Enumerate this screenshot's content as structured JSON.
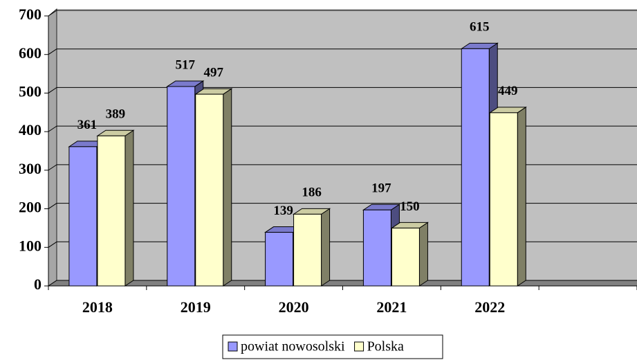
{
  "chart_data": {
    "type": "bar3d",
    "categories": [
      "2018",
      "2019",
      "2020",
      "2021",
      "2022",
      null
    ],
    "series": [
      {
        "name": "powiat nowosolski",
        "color": "#9999ff",
        "values": [
          361,
          517,
          139,
          197,
          615,
          null
        ]
      },
      {
        "name": "Polska",
        "color": "#ffffcc",
        "values": [
          389,
          497,
          186,
          150,
          449,
          null
        ]
      }
    ],
    "ylim": [
      0,
      700
    ],
    "yticks": [
      0,
      100,
      200,
      300,
      400,
      500,
      600,
      700
    ],
    "grid": true,
    "legend": "bottom"
  }
}
